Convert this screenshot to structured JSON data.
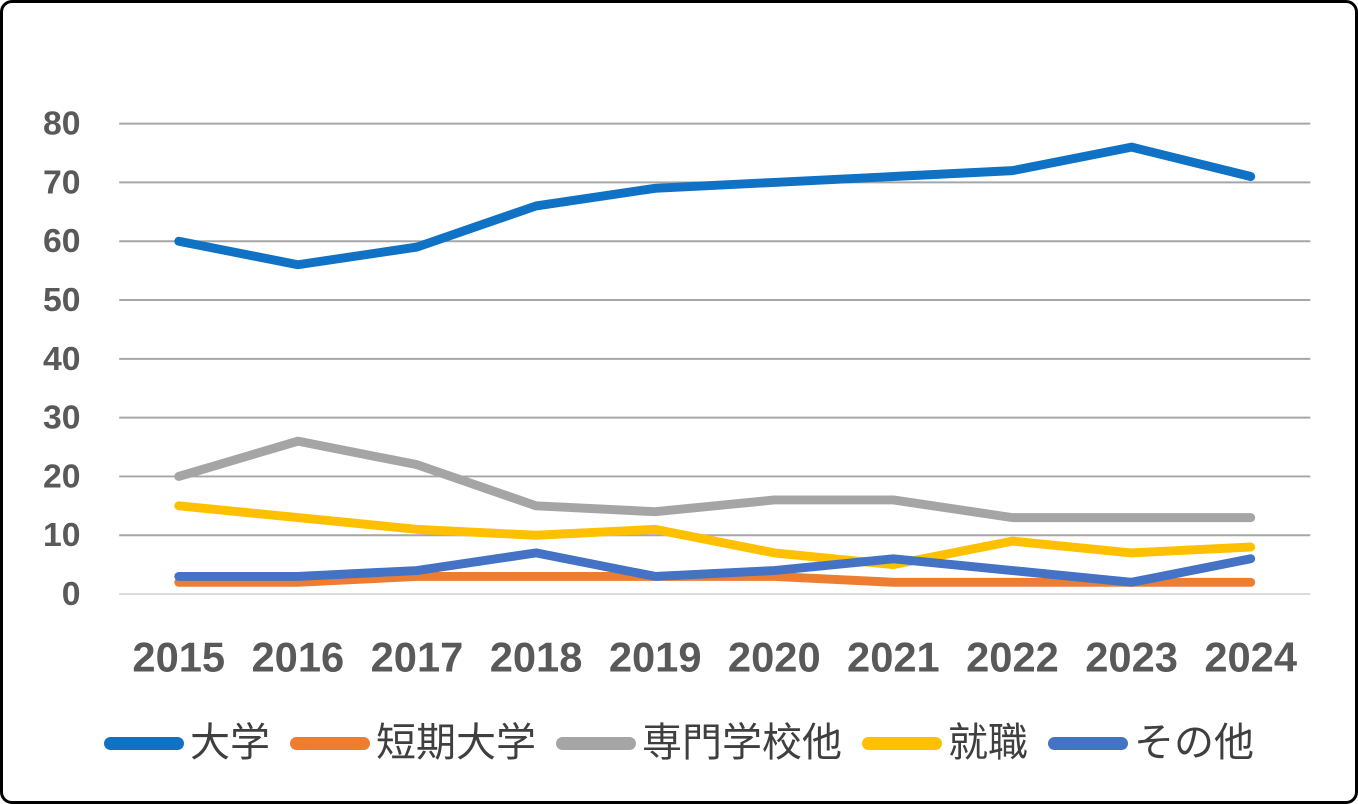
{
  "chart_data": {
    "type": "line",
    "title": "",
    "categories": [
      "2015",
      "2016",
      "2017",
      "2018",
      "2019",
      "2020",
      "2021",
      "2022",
      "2023",
      "2024"
    ],
    "series": [
      {
        "name": "大学",
        "color": "#0F72C4",
        "values": [
          60,
          56,
          59,
          66,
          69,
          70,
          71,
          72,
          76,
          71
        ]
      },
      {
        "name": "短期大学",
        "color": "#ED7D31",
        "values": [
          2,
          2,
          3,
          3,
          3,
          3,
          2,
          2,
          2,
          2
        ]
      },
      {
        "name": "専門学校他",
        "color": "#A5A5A5",
        "values": [
          20,
          26,
          22,
          15,
          14,
          16,
          16,
          13,
          13,
          13
        ]
      },
      {
        "name": "就職",
        "color": "#FFC000",
        "values": [
          15,
          13,
          11,
          10,
          11,
          7,
          5,
          9,
          7,
          8
        ]
      },
      {
        "name": "その他",
        "color": "#4472C4",
        "values": [
          3,
          3,
          4,
          7,
          3,
          4,
          6,
          4,
          2,
          6
        ]
      }
    ],
    "xlabel": "",
    "ylabel": "",
    "ylim": [
      0,
      80
    ],
    "yticks": [
      0,
      10,
      20,
      30,
      40,
      50,
      60,
      70,
      80
    ],
    "grid": "horizontal-only",
    "legend_position": "bottom",
    "colors": {
      "axis_label": "#595959",
      "gridline": "#A6A6A6",
      "axis_line": "#D9D9D9",
      "legend_text": "#3F3F3F",
      "background": "#FFFFFF",
      "frame_border": "#000000"
    }
  }
}
